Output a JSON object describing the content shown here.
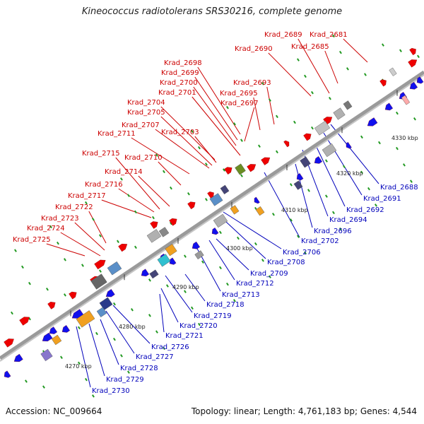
{
  "title": "Kineococcus radiotolerans SRS30216, complete genome",
  "footer": {
    "accession": "Accession: NC_009664",
    "summary": "Topology: linear; Length: 4,761,183 bp; Genes: 4,544"
  },
  "colors": {
    "top_label": "#cc0000",
    "bottom_label": "#0000bb",
    "forward_gene": "#ee0000",
    "reverse_gene": "#1010ee",
    "backbone": "#9a9a9a",
    "tick": "#229922"
  },
  "scale_labels": [
    {
      "text": "4270 kbp"
    },
    {
      "text": "4280 kbp"
    },
    {
      "text": "4290 kbp"
    },
    {
      "text": "4300 kbp"
    },
    {
      "text": "4310 kbp"
    },
    {
      "text": "4320 kbp"
    },
    {
      "text": "4330 kbp"
    }
  ],
  "top_genes": [
    "Krad_2681",
    "Krad_2685",
    "Krad_2689",
    "Krad_2690",
    "Krad_2693",
    "Krad_2695",
    "Krad_2697",
    "Krad_2698",
    "Krad_2699",
    "Krad_2700",
    "Krad_2701",
    "Krad_2703",
    "Krad_2704",
    "Krad_2705",
    "Krad_2707",
    "Krad_2710",
    "Krad_2711",
    "Krad_2714",
    "Krad_2715",
    "Krad_2716",
    "Krad_2717",
    "Krad_2722",
    "Krad_2723",
    "Krad_2724",
    "Krad_2725"
  ],
  "bottom_genes": [
    "Krad_2688",
    "Krad_2691",
    "Krad_2692",
    "Krad_2694",
    "Krad_2696",
    "Krad_2702",
    "Krad_2706",
    "Krad_2708",
    "Krad_2709",
    "Krad_2712",
    "Krad_2713",
    "Krad_2718",
    "Krad_2719",
    "Krad_2720",
    "Krad_2721",
    "Krad_2726",
    "Krad_2727",
    "Krad_2728",
    "Krad_2729",
    "Krad_2730"
  ]
}
